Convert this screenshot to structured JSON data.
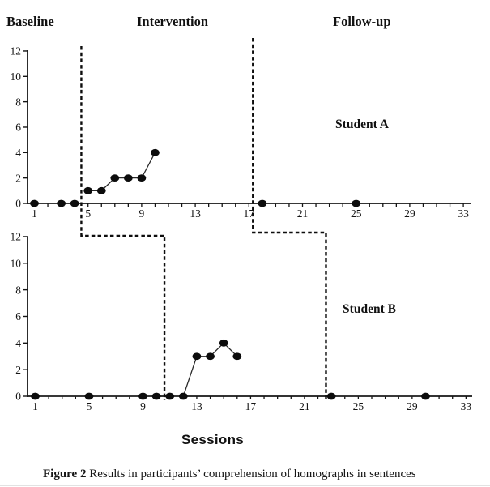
{
  "figure": {
    "phase_labels": [
      {
        "label": "Baseline"
      },
      {
        "label": "Intervention"
      },
      {
        "label": "Follow-up"
      }
    ],
    "xlabel": "Sessions",
    "caption": {
      "bold": "Figure 2",
      "text": " Results in participants’ comprehension of homographs in sentences"
    }
  },
  "chart_data": [
    {
      "type": "line",
      "title": "Student A",
      "xlabel": "Sessions",
      "ylabel": "",
      "xlim": [
        1,
        33
      ],
      "ylim": [
        0,
        12
      ],
      "xticks": [
        1,
        5,
        9,
        13,
        17,
        21,
        25,
        29,
        33
      ],
      "yticks": [
        0,
        2,
        4,
        6,
        8,
        10,
        12
      ],
      "grid": false,
      "legend": "none",
      "series": [
        {
          "name": "Baseline",
          "points": [
            [
              1,
              0
            ],
            [
              3,
              0
            ],
            [
              4,
              0
            ]
          ]
        },
        {
          "name": "Intervention",
          "points": [
            [
              5,
              1
            ],
            [
              6,
              1
            ],
            [
              7,
              2
            ],
            [
              8,
              2
            ],
            [
              9,
              2
            ],
            [
              10,
              4
            ]
          ]
        },
        {
          "name": "Follow-up",
          "points": [
            [
              18,
              0
            ],
            [
              25,
              0
            ]
          ]
        }
      ],
      "phase_boundaries_x": [
        4.5,
        17.3
      ]
    },
    {
      "type": "line",
      "title": "Student B",
      "xlabel": "Sessions",
      "ylabel": "",
      "xlim": [
        1,
        33
      ],
      "ylim": [
        0,
        12
      ],
      "xticks": [
        1,
        5,
        9,
        13,
        17,
        21,
        25,
        29,
        33
      ],
      "yticks": [
        0,
        2,
        4,
        6,
        8,
        10,
        12
      ],
      "grid": false,
      "legend": "none",
      "series": [
        {
          "name": "Baseline",
          "points": [
            [
              1,
              0
            ],
            [
              5,
              0
            ],
            [
              9,
              0
            ],
            [
              10,
              0
            ]
          ]
        },
        {
          "name": "Intervention",
          "points": [
            [
              11,
              0
            ],
            [
              12,
              0
            ],
            [
              13,
              3
            ],
            [
              14,
              3
            ],
            [
              15,
              4
            ],
            [
              16,
              3
            ]
          ]
        },
        {
          "name": "Follow-up",
          "points": [
            [
              23,
              0
            ],
            [
              30,
              0
            ]
          ]
        }
      ],
      "phase_boundaries_x": [
        10.6,
        22.6
      ]
    }
  ]
}
